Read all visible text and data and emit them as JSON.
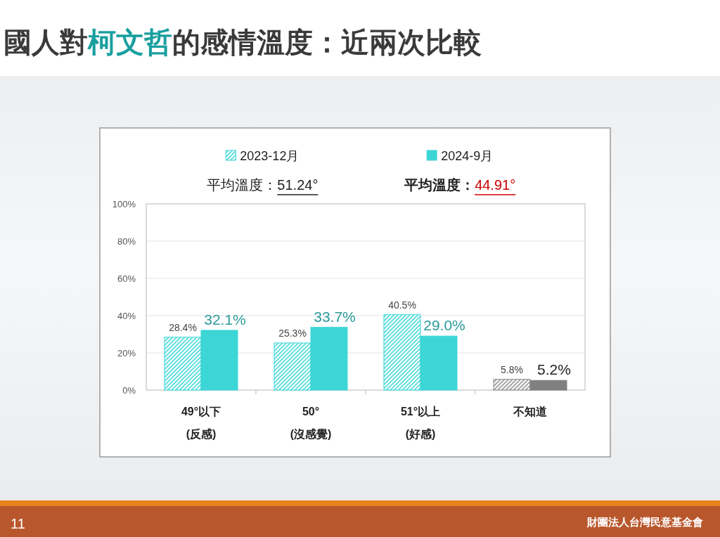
{
  "chart_data": {
    "type": "bar",
    "title": "國人對柯文哲的感情溫度：近兩次比較",
    "categories": [
      "49°以下\n(反感)",
      "50°\n(沒感覺)",
      "51°以上\n(好感)",
      "不知道"
    ],
    "series": [
      {
        "name": "2023-12月",
        "color": "#3dd6d6",
        "colors": [
          "#3dd6d6",
          "#3dd6d6",
          "#3dd6d6",
          "#8c8c8c"
        ],
        "values": [
          28.4,
          25.3,
          40.5,
          5.8
        ],
        "value_labels": [
          "28.4%",
          "25.3%",
          "40.5%",
          "5.8%"
        ]
      },
      {
        "name": "2024-9月",
        "color": "#3dd6d6",
        "colors": [
          "#3dd6d6",
          "#3dd6d6",
          "#3dd6d6",
          "#808080"
        ],
        "values": [
          32.1,
          33.7,
          29.0,
          5.2
        ],
        "value_labels": [
          "32.1%",
          "33.7%",
          "29.0%",
          "5.2%"
        ]
      }
    ],
    "ylim": [
      0,
      100
    ],
    "yticks": [
      {
        "value": 0,
        "label": "0%"
      },
      {
        "value": 20,
        "label": "20%"
      },
      {
        "value": 40,
        "label": "40%"
      },
      {
        "value": 60,
        "label": "60%"
      },
      {
        "value": 80,
        "label": "80%"
      },
      {
        "value": 100,
        "label": "100%"
      }
    ],
    "grid": "y",
    "legend": "top",
    "annotations": [
      "平均溫度：51.24°",
      "平均溫度：44.91°",
      "11",
      "財團法人台灣民意基金會"
    ]
  }
}
